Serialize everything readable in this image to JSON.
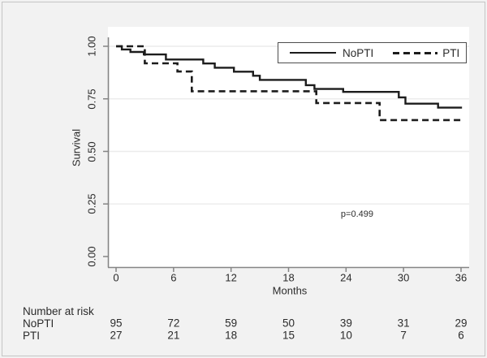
{
  "figure": {
    "background": "#f2f2f2",
    "border_color": "#c4c4c4"
  },
  "chart_data": {
    "type": "line",
    "subtype": "kaplan-meier-step",
    "title": "",
    "xlabel": "Months",
    "ylabel": "Survival",
    "xlim": [
      0,
      36
    ],
    "ylim": [
      0.0,
      1.0
    ],
    "grid": true,
    "legend": {
      "position": "top-right-inside",
      "entries": [
        "NoPTI",
        "PTI"
      ]
    },
    "annotation": {
      "text": "p=0.499",
      "x_month": 25.2,
      "y_survival": 0.2
    },
    "xticks": [
      {
        "value": 0,
        "label": "0"
      },
      {
        "value": 6,
        "label": "6"
      },
      {
        "value": 12,
        "label": "12"
      },
      {
        "value": 18,
        "label": "18"
      },
      {
        "value": 24,
        "label": "24"
      },
      {
        "value": 30,
        "label": "30"
      },
      {
        "value": 36,
        "label": "36"
      }
    ],
    "yticks": [
      {
        "value": 1.0,
        "label": "1.00"
      },
      {
        "value": 0.75,
        "label": "0.75"
      },
      {
        "value": 0.5,
        "label": "0.50"
      },
      {
        "value": 0.25,
        "label": "0.25"
      },
      {
        "value": 0.0,
        "label": "0.00"
      }
    ],
    "series": [
      {
        "name": "NoPTI",
        "line": "solid",
        "color": "#1c1c1c",
        "end_month": 36.1,
        "points": [
          [
            0,
            1.0
          ],
          [
            0.6,
            0.985
          ],
          [
            1.5,
            0.973
          ],
          [
            2.9,
            0.961
          ],
          [
            5.2,
            0.937
          ],
          [
            9.1,
            0.918
          ],
          [
            10.3,
            0.898
          ],
          [
            12.3,
            0.879
          ],
          [
            14.3,
            0.86
          ],
          [
            15.0,
            0.84
          ],
          [
            19.8,
            0.815
          ],
          [
            20.7,
            0.797
          ],
          [
            23.7,
            0.783
          ],
          [
            29.5,
            0.757
          ],
          [
            30.2,
            0.727
          ],
          [
            33.6,
            0.708
          ]
        ]
      },
      {
        "name": "PTI",
        "line": "dashed",
        "color": "#1c1c1c",
        "end_month": 36.2,
        "points": [
          [
            0,
            1.0
          ],
          [
            3.0,
            0.919
          ],
          [
            6.4,
            0.88
          ],
          [
            7.9,
            0.786
          ],
          [
            20.9,
            0.73
          ],
          [
            27.5,
            0.649
          ]
        ]
      }
    ],
    "colors": {
      "axis": "#858585",
      "grid": "#ececec",
      "text": "#2b2b2b",
      "curve": "#1c1c1c",
      "plot_background": "#ffffff"
    }
  },
  "risk_table": {
    "title": "Number at risk",
    "months": [
      0,
      6,
      12,
      18,
      24,
      30,
      36
    ],
    "rows": [
      {
        "label": "NoPTI",
        "values": [
          "95",
          "72",
          "59",
          "50",
          "39",
          "31",
          "29"
        ]
      },
      {
        "label": "PTI",
        "values": [
          "27",
          "21",
          "18",
          "15",
          "10",
          "7",
          "6"
        ]
      }
    ]
  }
}
